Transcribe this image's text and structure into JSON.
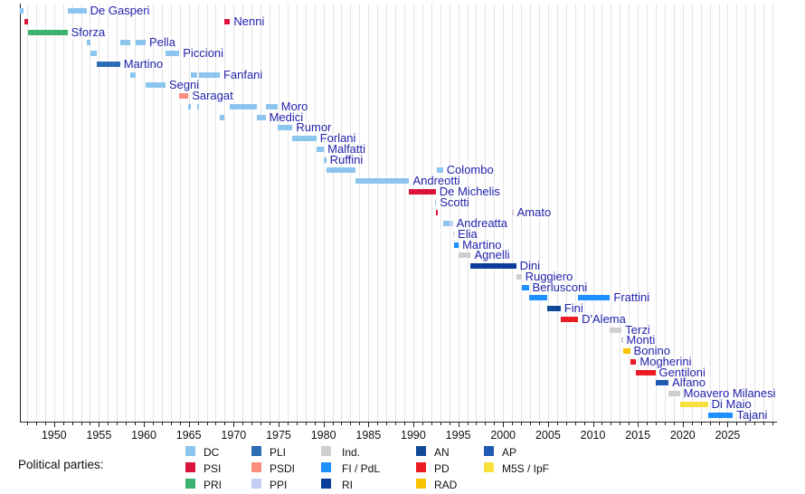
{
  "parties": {
    "DC": {
      "label": "DC",
      "color": "#8cc5ee"
    },
    "PSI": {
      "label": "PSI",
      "color": "#dc143c"
    },
    "PRI": {
      "label": "PRI",
      "color": "#3cb371"
    },
    "PLI": {
      "label": "PLI",
      "color": "#2b6cb5"
    },
    "PSDI": {
      "label": "PSDI",
      "color": "#f98e7e"
    },
    "PPI": {
      "label": "PPI",
      "color": "#c5cef4"
    },
    "IND": {
      "label": "Ind.",
      "color": "#cfcfcf"
    },
    "FI": {
      "label": "FI / PdL",
      "color": "#1e90ff"
    },
    "RI": {
      "label": "RI",
      "color": "#0b3d9b"
    },
    "AN": {
      "label": "AN",
      "color": "#0f4a96"
    },
    "PD": {
      "label": "PD",
      "color": "#ec1c24"
    },
    "RAD": {
      "label": "RAD",
      "color": "#f8c300"
    },
    "AP": {
      "label": "AP",
      "color": "#1e5cb3"
    },
    "M5S": {
      "label": "M5S / IpF",
      "color": "#f8e13c"
    }
  },
  "legend": {
    "title": "Political parties:",
    "columns": [
      [
        "DC",
        "PSI",
        "PRI"
      ],
      [
        "PLI",
        "PSDI",
        "PPI"
      ],
      [
        "IND",
        "FI",
        "RI"
      ],
      [
        "AN",
        "PD",
        "RAD"
      ],
      [
        "AP",
        "M5S"
      ]
    ]
  },
  "chart_data": {
    "type": "timeline",
    "x_axis": {
      "start": 1946.2,
      "end": 2030.5,
      "major_ticks": [
        1950,
        1955,
        1960,
        1965,
        1970,
        1975,
        1980,
        1985,
        1990,
        1995,
        2000,
        2005,
        2010,
        2015,
        2020,
        2025
      ],
      "minor_tick_step": 1,
      "gridlines": "yearly"
    },
    "label_color": "#2222ae",
    "rows": [
      {
        "name": "De Gasperi",
        "terms": [
          {
            "start": 1946.2,
            "end": 1946.65,
            "party": "DC"
          },
          {
            "start": 1951.5,
            "end": 1953.62,
            "party": "DC"
          }
        ]
      },
      {
        "name": "Nenni",
        "terms": [
          {
            "start": 1946.75,
            "end": 1947.1,
            "party": "PSI"
          },
          {
            "start": 1968.95,
            "end": 1969.6,
            "party": "PSI"
          }
        ]
      },
      {
        "name": "Sforza",
        "terms": [
          {
            "start": 1947.1,
            "end": 1951.5,
            "party": "PRI"
          }
        ]
      },
      {
        "name": "Pella",
        "terms": [
          {
            "start": 1953.62,
            "end": 1954.05,
            "party": "DC"
          },
          {
            "start": 1957.35,
            "end": 1958.5,
            "party": "DC"
          },
          {
            "start": 1959.1,
            "end": 1960.2,
            "party": "DC"
          }
        ]
      },
      {
        "name": "Piccioni",
        "terms": [
          {
            "start": 1954.05,
            "end": 1954.72,
            "party": "DC"
          },
          {
            "start": 1962.4,
            "end": 1963.95,
            "party": "DC"
          }
        ]
      },
      {
        "name": "Martino",
        "terms": [
          {
            "start": 1954.72,
            "end": 1957.35,
            "party": "PLI"
          }
        ]
      },
      {
        "name": "Fanfani",
        "terms": [
          {
            "start": 1958.5,
            "end": 1959.1,
            "party": "DC"
          },
          {
            "start": 1965.2,
            "end": 1965.95,
            "party": "DC"
          },
          {
            "start": 1966.1,
            "end": 1968.45,
            "party": "DC"
          }
        ]
      },
      {
        "name": "Segni",
        "terms": [
          {
            "start": 1960.2,
            "end": 1962.4,
            "party": "DC"
          }
        ]
      },
      {
        "name": "Saragat",
        "terms": [
          {
            "start": 1963.95,
            "end": 1964.95,
            "party": "PSDI"
          }
        ]
      },
      {
        "name": "Moro",
        "terms": [
          {
            "start": 1964.95,
            "end": 1965.2,
            "party": "DC"
          },
          {
            "start": 1965.95,
            "end": 1966.1,
            "party": "DC"
          },
          {
            "start": 1969.6,
            "end": 1972.55,
            "party": "DC"
          },
          {
            "start": 1973.55,
            "end": 1974.88,
            "party": "DC"
          }
        ]
      },
      {
        "name": "Medici",
        "terms": [
          {
            "start": 1968.45,
            "end": 1968.95,
            "party": "DC"
          },
          {
            "start": 1972.55,
            "end": 1973.55,
            "party": "DC"
          }
        ]
      },
      {
        "name": "Rumor",
        "terms": [
          {
            "start": 1974.88,
            "end": 1976.55,
            "party": "DC"
          }
        ]
      },
      {
        "name": "Forlani",
        "terms": [
          {
            "start": 1976.55,
            "end": 1979.2,
            "party": "DC"
          }
        ]
      },
      {
        "name": "Malfatti",
        "terms": [
          {
            "start": 1979.2,
            "end": 1980.05,
            "party": "DC"
          }
        ]
      },
      {
        "name": "Ruffini",
        "terms": [
          {
            "start": 1980.05,
            "end": 1980.3,
            "party": "DC"
          }
        ]
      },
      {
        "name": "Colombo",
        "terms": [
          {
            "start": 1980.3,
            "end": 1983.6,
            "party": "DC"
          },
          {
            "start": 1992.6,
            "end": 1993.3,
            "party": "DC"
          }
        ]
      },
      {
        "name": "Andreotti",
        "terms": [
          {
            "start": 1983.6,
            "end": 1989.55,
            "party": "DC"
          }
        ]
      },
      {
        "name": "De Michelis",
        "terms": [
          {
            "start": 1989.55,
            "end": 1992.5,
            "party": "PSI"
          }
        ]
      },
      {
        "name": "Scotti",
        "terms": [
          {
            "start": 1992.42,
            "end": 1992.55,
            "party": "DC"
          }
        ]
      },
      {
        "name": "Amato",
        "terms": [
          {
            "start": 1992.55,
            "end": 1992.7,
            "party": "PSI"
          },
          {
            "start": 2000.95,
            "end": 2001.15,
            "party": "IND"
          }
        ]
      },
      {
        "name": "Andreatta",
        "terms": [
          {
            "start": 1993.3,
            "end": 1994.05,
            "party": "DC"
          },
          {
            "start": 1994.05,
            "end": 1994.4,
            "party": "PPI"
          }
        ]
      },
      {
        "name": "Elia",
        "terms": [
          {
            "start": 1994.4,
            "end": 1994.55,
            "party": "IND"
          }
        ]
      },
      {
        "name": "Martino",
        "terms": [
          {
            "start": 1994.55,
            "end": 1995.05,
            "party": "FI"
          }
        ]
      },
      {
        "name": "Agnelli",
        "terms": [
          {
            "start": 1995.05,
            "end": 1996.4,
            "party": "IND"
          }
        ]
      },
      {
        "name": "Dini",
        "terms": [
          {
            "start": 1996.4,
            "end": 2001.45,
            "party": "RI"
          }
        ]
      },
      {
        "name": "Ruggiero",
        "terms": [
          {
            "start": 2001.45,
            "end": 2002.05,
            "party": "IND"
          }
        ]
      },
      {
        "name": "Berlusconi",
        "terms": [
          {
            "start": 2002.05,
            "end": 2002.85,
            "party": "FI"
          }
        ]
      },
      {
        "name": "Frattini",
        "terms": [
          {
            "start": 2002.85,
            "end": 2004.9,
            "party": "FI"
          },
          {
            "start": 2008.35,
            "end": 2011.9,
            "party": "FI"
          }
        ]
      },
      {
        "name": "Fini",
        "terms": [
          {
            "start": 2004.9,
            "end": 2006.4,
            "party": "AN"
          }
        ]
      },
      {
        "name": "D'Alema",
        "terms": [
          {
            "start": 2006.4,
            "end": 2008.35,
            "party": "PD"
          }
        ]
      },
      {
        "name": "Terzi",
        "terms": [
          {
            "start": 2011.9,
            "end": 2013.2,
            "party": "IND"
          }
        ]
      },
      {
        "name": "Monti",
        "terms": [
          {
            "start": 2013.2,
            "end": 2013.32,
            "party": "IND"
          }
        ]
      },
      {
        "name": "Bonino",
        "terms": [
          {
            "start": 2013.32,
            "end": 2014.13,
            "party": "RAD"
          }
        ]
      },
      {
        "name": "Mogherini",
        "terms": [
          {
            "start": 2014.13,
            "end": 2014.82,
            "party": "PD"
          }
        ]
      },
      {
        "name": "Gentiloni",
        "terms": [
          {
            "start": 2014.82,
            "end": 2016.95,
            "party": "PD"
          }
        ]
      },
      {
        "name": "Alfano",
        "terms": [
          {
            "start": 2016.95,
            "end": 2018.42,
            "party": "AP"
          }
        ]
      },
      {
        "name": "Moavero Milanesi",
        "terms": [
          {
            "start": 2018.42,
            "end": 2019.68,
            "party": "IND"
          }
        ]
      },
      {
        "name": "Di Maio",
        "terms": [
          {
            "start": 2019.68,
            "end": 2022.8,
            "party": "M5S"
          }
        ]
      },
      {
        "name": "Tajani",
        "terms": [
          {
            "start": 2022.8,
            "end": 2025.6,
            "party": "FI"
          }
        ]
      }
    ]
  }
}
